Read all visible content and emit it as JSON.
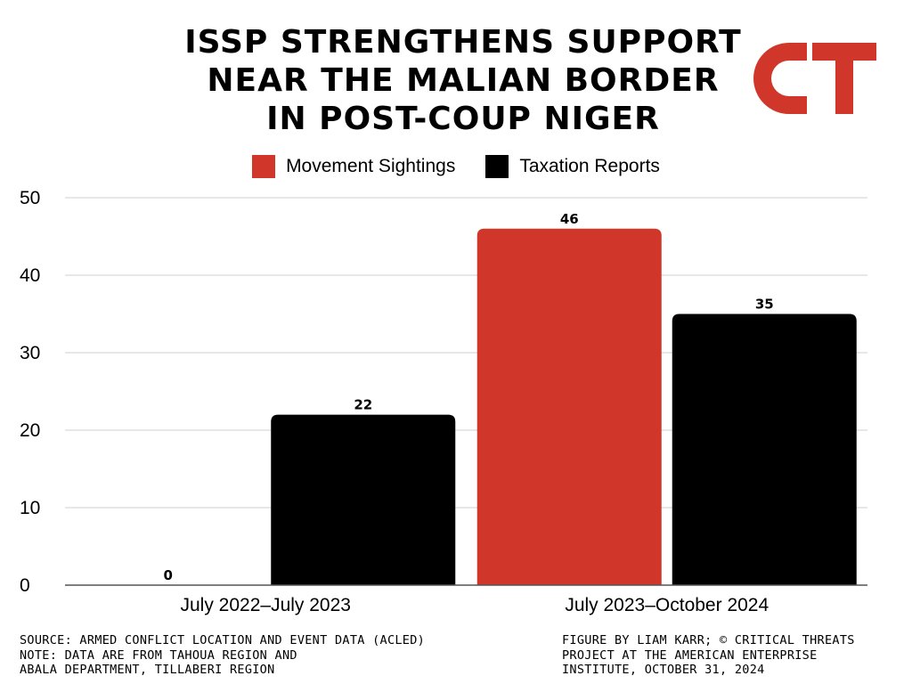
{
  "title_lines": [
    "ISSP STRENGTHENS SUPPORT",
    "NEAR THE MALIAN BORDER",
    "IN POST-COUP NIGER"
  ],
  "logo": {
    "text": "CT",
    "color": "#d0372a"
  },
  "chart_data": {
    "type": "bar",
    "title": "ISSP STRENGTHENS SUPPORT NEAR THE MALIAN BORDER IN POST-COUP NIGER",
    "categories": [
      "July 2022–July 2023",
      "July 2023–October 2024"
    ],
    "series": [
      {
        "name": "Movement Sightings",
        "color": "#d0372a",
        "values": [
          0,
          46
        ]
      },
      {
        "name": "Taxation Reports",
        "color": "#000000",
        "values": [
          22,
          35
        ]
      }
    ],
    "ylim": [
      0,
      50
    ],
    "yticks": [
      0,
      10,
      20,
      30,
      40,
      50
    ],
    "xlabel": "",
    "ylabel": "",
    "grid": true,
    "legend_position": "top-center"
  },
  "footer": {
    "left": [
      "SOURCE: ARMED CONFLICT LOCATION AND EVENT DATA (ACLED)",
      "NOTE: DATA ARE FROM TAHOUA REGION AND",
      "ABALA DEPARTMENT, TILLABERI REGION"
    ],
    "right": [
      "FIGURE BY LIAM KARR; © CRITICAL THREATS",
      "PROJECT AT THE AMERICAN ENTERPRISE",
      "INSTITUTE, OCTOBER 31, 2024"
    ]
  }
}
